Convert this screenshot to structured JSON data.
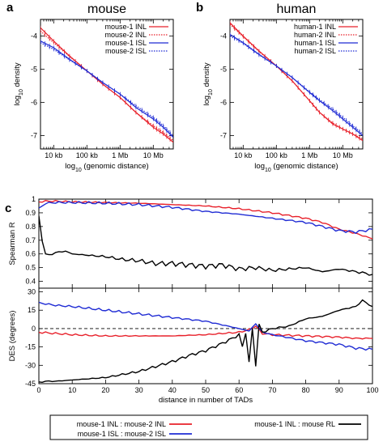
{
  "colors": {
    "red": "#e8202a",
    "blue": "#1f2bd4",
    "black": "#000000",
    "axis": "#000000"
  },
  "chart_data": [
    {
      "type": "line",
      "panel_label": "a",
      "title": "mouse",
      "xlabel_pre": "log",
      "xlabel_sub": "10",
      "xlabel_post": " (genomic distance)",
      "ylabel_pre": "log",
      "ylabel_sub": "10",
      "ylabel_post": " density",
      "x_scale": "log",
      "xlim": [
        4000,
        40000000
      ],
      "ylim": [
        -7.4,
        -3.5
      ],
      "xticks": [
        10000,
        100000,
        1000000,
        10000000
      ],
      "xtick_labels": [
        "10 kb",
        "100 kb",
        "1 Mb",
        "10 Mb"
      ],
      "yticks": [
        -4,
        -5,
        -6,
        -7
      ],
      "ytick_labels": [
        "-4",
        "-5",
        "-6",
        "-7"
      ],
      "legend_position": "top-right",
      "series": [
        {
          "name": "mouse-1 INL",
          "color": "#e8202a",
          "style": "solid",
          "x": [
            4000,
            10000,
            30000,
            100000,
            300000,
            1000000,
            3000000,
            10000000,
            20000000,
            40000000
          ],
          "y": [
            -3.75,
            -4.15,
            -4.6,
            -5.05,
            -5.45,
            -5.85,
            -6.3,
            -6.75,
            -6.95,
            -7.2
          ]
        },
        {
          "name": "mouse-2 INL",
          "color": "#e8202a",
          "style": "dotted",
          "x": [
            4000,
            10000,
            30000,
            100000,
            300000,
            1000000,
            3000000,
            10000000,
            20000000,
            40000000
          ],
          "y": [
            -3.85,
            -4.2,
            -4.62,
            -5.05,
            -5.45,
            -5.85,
            -6.3,
            -6.7,
            -6.9,
            -7.15
          ]
        },
        {
          "name": "mouse-1 ISL",
          "color": "#1f2bd4",
          "style": "solid",
          "x": [
            4000,
            10000,
            30000,
            100000,
            300000,
            1000000,
            3000000,
            10000000,
            20000000,
            40000000
          ],
          "y": [
            -4.15,
            -4.35,
            -4.7,
            -5.05,
            -5.4,
            -5.75,
            -6.15,
            -6.5,
            -6.75,
            -7.05
          ]
        },
        {
          "name": "mouse-2 ISL",
          "color": "#1f2bd4",
          "style": "dotted",
          "x": [
            4000,
            10000,
            30000,
            100000,
            300000,
            1000000,
            3000000,
            10000000,
            20000000,
            40000000
          ],
          "y": [
            -4.2,
            -4.4,
            -4.72,
            -5.05,
            -5.4,
            -5.75,
            -6.1,
            -6.45,
            -6.7,
            -7.0
          ]
        }
      ]
    },
    {
      "type": "line",
      "panel_label": "b",
      "title": "human",
      "xlabel_pre": "log",
      "xlabel_sub": "10",
      "xlabel_post": " (genomic distance)",
      "ylabel_pre": "log",
      "ylabel_sub": "10",
      "ylabel_post": " density",
      "x_scale": "log",
      "xlim": [
        4000,
        40000000
      ],
      "ylim": [
        -7.4,
        -3.5
      ],
      "xticks": [
        10000,
        100000,
        1000000,
        10000000
      ],
      "xtick_labels": [
        "10 kb",
        "100 kb",
        "1 Mb",
        "10 Mb"
      ],
      "yticks": [
        -4,
        -5,
        -6,
        -7
      ],
      "ytick_labels": [
        "-4",
        "-5",
        "-6",
        "-7"
      ],
      "legend_position": "top-right",
      "series": [
        {
          "name": "human-1 INL",
          "color": "#e8202a",
          "style": "solid",
          "x": [
            4000,
            10000,
            30000,
            100000,
            300000,
            1000000,
            2000000,
            5000000,
            10000000,
            20000000,
            40000000
          ],
          "y": [
            -3.6,
            -4.0,
            -4.45,
            -4.9,
            -5.35,
            -5.95,
            -6.3,
            -6.65,
            -6.8,
            -6.95,
            -7.15
          ]
        },
        {
          "name": "human-2 INL",
          "color": "#e8202a",
          "style": "dotted",
          "x": [
            4000,
            10000,
            30000,
            100000,
            300000,
            1000000,
            2000000,
            5000000,
            10000000,
            20000000,
            40000000
          ],
          "y": [
            -3.65,
            -4.02,
            -4.47,
            -4.9,
            -5.35,
            -5.95,
            -6.3,
            -6.62,
            -6.8,
            -6.95,
            -7.1
          ]
        },
        {
          "name": "human-1 ISL",
          "color": "#1f2bd4",
          "style": "solid",
          "x": [
            4000,
            10000,
            30000,
            100000,
            300000,
            1000000,
            2000000,
            5000000,
            10000000,
            20000000,
            40000000
          ],
          "y": [
            -3.95,
            -4.2,
            -4.55,
            -4.9,
            -5.25,
            -5.7,
            -5.95,
            -6.25,
            -6.5,
            -6.75,
            -7.0
          ]
        },
        {
          "name": "human-2 ISL",
          "color": "#1f2bd4",
          "style": "dotted",
          "x": [
            4000,
            10000,
            30000,
            100000,
            300000,
            1000000,
            2000000,
            5000000,
            10000000,
            20000000,
            40000000
          ],
          "y": [
            -4.0,
            -4.22,
            -4.57,
            -4.9,
            -5.25,
            -5.68,
            -5.92,
            -6.2,
            -6.45,
            -6.7,
            -6.95
          ]
        }
      ]
    },
    {
      "type": "line",
      "panel_label": "c",
      "title": "",
      "xlabel": "distance in number of TADs",
      "ylabel": "Spearman R",
      "xlim": [
        0,
        100
      ],
      "ylim": [
        0.35,
        1.0
      ],
      "xticks": [
        0,
        10,
        20,
        30,
        40,
        50,
        60,
        70,
        80,
        90,
        100
      ],
      "xtick_labels": [
        "0",
        "10",
        "20",
        "30",
        "40",
        "50",
        "60",
        "70",
        "80",
        "90",
        "100"
      ],
      "yticks": [
        1,
        0.9,
        0.8,
        0.7,
        0.6,
        0.5,
        0.4
      ],
      "ytick_labels": [
        "1",
        "0.9",
        "0.8",
        "0.7",
        "0.6",
        "0.5",
        "0.4"
      ],
      "series": [
        {
          "name": "mouse-1 INL : mouse-2 INL",
          "color": "#e8202a",
          "x": [
            0,
            2,
            5,
            10,
            20,
            30,
            40,
            50,
            60,
            70,
            80,
            85,
            90,
            95,
            100
          ],
          "y": [
            0.98,
            0.985,
            0.985,
            0.98,
            0.975,
            0.97,
            0.96,
            0.95,
            0.93,
            0.9,
            0.86,
            0.83,
            0.78,
            0.75,
            0.71
          ]
        },
        {
          "name": "mouse-1 ISL : mouse-2 ISL",
          "color": "#1f2bd4",
          "x": [
            0,
            2,
            5,
            10,
            20,
            30,
            40,
            50,
            60,
            70,
            80,
            85,
            90,
            95,
            100
          ],
          "y": [
            0.93,
            0.97,
            0.975,
            0.975,
            0.97,
            0.96,
            0.94,
            0.91,
            0.89,
            0.86,
            0.83,
            0.8,
            0.77,
            0.76,
            0.78
          ]
        },
        {
          "name": "mouse-1 INL : mouse RL",
          "color": "#000000",
          "x": [
            0,
            1,
            2,
            3,
            5,
            8,
            10,
            15,
            20,
            25,
            30,
            35,
            40,
            45,
            50,
            55,
            60,
            65,
            70,
            75,
            80,
            85,
            90,
            95,
            100
          ],
          "y": [
            0.87,
            0.7,
            0.6,
            0.59,
            0.61,
            0.62,
            0.6,
            0.59,
            0.58,
            0.56,
            0.55,
            0.53,
            0.53,
            0.52,
            0.51,
            0.52,
            0.49,
            0.5,
            0.48,
            0.49,
            0.5,
            0.47,
            0.49,
            0.47,
            0.45
          ]
        }
      ]
    },
    {
      "type": "line",
      "panel_label": "",
      "title": "",
      "xlabel": "distance in number of TADs",
      "ylabel": "DES (degrees)",
      "xlim": [
        0,
        100
      ],
      "ylim": [
        -45,
        33
      ],
      "xticks": [
        0,
        10,
        20,
        30,
        40,
        50,
        60,
        70,
        80,
        90,
        100
      ],
      "xtick_labels": [
        "0",
        "10",
        "20",
        "30",
        "40",
        "50",
        "60",
        "70",
        "80",
        "90",
        "100"
      ],
      "yticks": [
        30,
        15,
        0,
        -15,
        -30,
        -45
      ],
      "ytick_labels": [
        "30",
        "15",
        "0",
        "-15",
        "-30",
        "-45"
      ],
      "reference_line_y": 0,
      "legend_position": "bottom",
      "series": [
        {
          "name": "mouse-1 INL : mouse-2 INL",
          "color": "#e8202a",
          "x": [
            0,
            5,
            10,
            20,
            30,
            40,
            50,
            55,
            60,
            63,
            65,
            67,
            70,
            80,
            90,
            95,
            100
          ],
          "y": [
            -3,
            -4,
            -5,
            -6,
            -6,
            -6,
            -5,
            -4,
            -3,
            -1,
            2,
            -4,
            -5,
            -6,
            -7,
            -8,
            -8
          ]
        },
        {
          "name": "mouse-1 ISL : mouse-2 ISL",
          "color": "#1f2bd4",
          "x": [
            0,
            5,
            10,
            20,
            30,
            40,
            50,
            55,
            60,
            63,
            65,
            67,
            70,
            80,
            90,
            95,
            100
          ],
          "y": [
            21,
            19,
            18,
            15,
            12,
            9,
            6,
            3,
            0,
            -2,
            4,
            -3,
            -5,
            -10,
            -13,
            -16,
            -17
          ]
        },
        {
          "name": "mouse-1 INL : mouse RL",
          "color": "#000000",
          "x": [
            0,
            2,
            5,
            10,
            20,
            30,
            40,
            45,
            50,
            55,
            58,
            60,
            61,
            62,
            63,
            64,
            65,
            66,
            67,
            70,
            75,
            80,
            85,
            90,
            95,
            97,
            100
          ],
          "y": [
            -44,
            -43,
            -43,
            -42,
            -40,
            -35,
            -27,
            -22,
            -18,
            -12,
            -8,
            -5,
            -15,
            -3,
            -28,
            0,
            -30,
            3,
            -3,
            0,
            2,
            8,
            10,
            15,
            18,
            23,
            18
          ]
        }
      ]
    }
  ]
}
